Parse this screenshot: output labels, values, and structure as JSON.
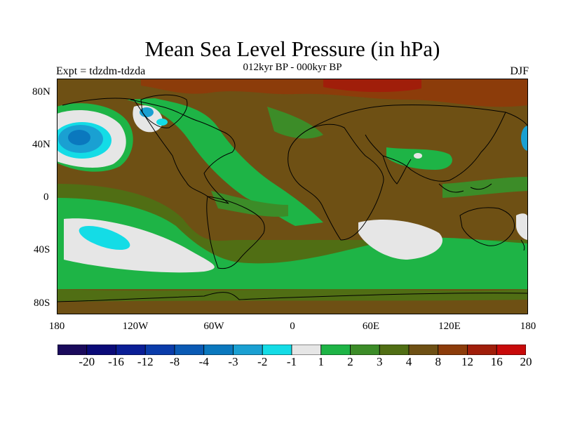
{
  "title": "Mean Sea Level Pressure (in hPa)",
  "subtitle": "012kyr BP - 000kyr BP",
  "experiment": "Expt = tdzdm-tdzda",
  "season": "DJF",
  "lat_labels": [
    "80N",
    "40N",
    "0",
    "40S",
    "80S"
  ],
  "lon_labels": [
    "180",
    "120W",
    "60W",
    "0",
    "60E",
    "120E",
    "180"
  ],
  "colorbar": {
    "labels": [
      "-20",
      "-16",
      "-12",
      "-8",
      "-4",
      "-3",
      "-2",
      "-1",
      "1",
      "2",
      "3",
      "4",
      "8",
      "12",
      "16",
      "20"
    ],
    "colors": [
      "#1a0a5c",
      "#0a0a78",
      "#0a1e96",
      "#0a3caa",
      "#0a5ab4",
      "#0a78be",
      "#1aa0d2",
      "#14dce6",
      "#e6e6e6",
      "#1eb446",
      "#3c8c28",
      "#506e14",
      "#6e5014",
      "#8c3c0a",
      "#a01e0a",
      "#c80a0a"
    ]
  },
  "colors": {
    "background": "#7a4a14",
    "coast": "#000000"
  }
}
